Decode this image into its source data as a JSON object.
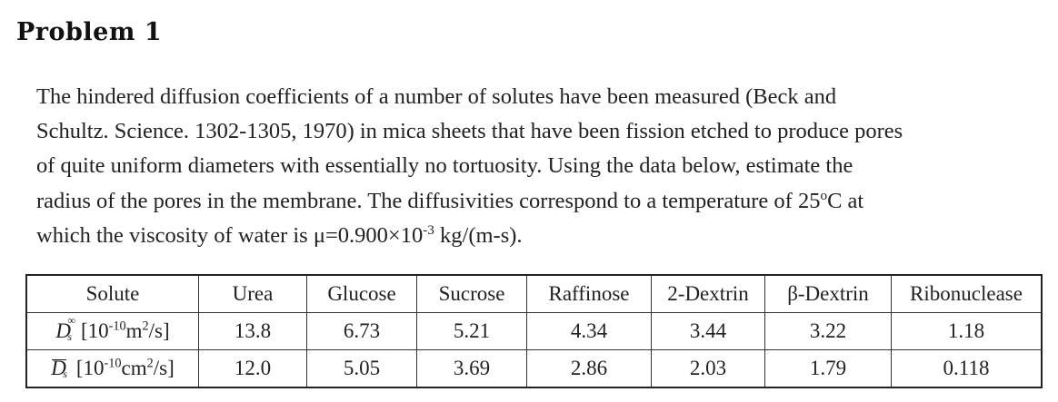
{
  "heading": "Problem 1",
  "paragraph": {
    "line1": "The hindered diffusion coefficients of a number of solutes have been measured (Beck and",
    "line2": "Schultz. Science. 1302-1305, 1970) in mica sheets that have been fission etched to produce pores",
    "line3": "of quite uniform diameters with essentially no tortuosity.  Using the data below, estimate the",
    "line4_a": "radius of the pores in the membrane.  The diffusivities correspond to a temperature of 25",
    "line4_deg": "o",
    "line4_b": "C at",
    "line5_a": "which the viscosity of water is μ=0.900×10",
    "line5_exp": "-3",
    "line5_b": " kg/(m-s)."
  },
  "table": {
    "headers": [
      "Solute",
      "Urea",
      "Glucose",
      "Sucrose",
      "Raffinose",
      "2-Dextrin",
      "β-Dextrin",
      "Ribonuclease"
    ],
    "row1": {
      "symbol": "D",
      "symbol_sup": "∞",
      "symbol_sub": "s",
      "unit_a": "[10",
      "unit_exp1": "-10",
      "unit_b": "m",
      "unit_exp2": "2",
      "unit_c": "/s]",
      "values": [
        "13.8",
        "6.73",
        "5.21",
        "4.34",
        "3.44",
        "3.22",
        "1.18"
      ]
    },
    "row2": {
      "symbol": "D",
      "symbol_sub": "s",
      "unit_a": "[10",
      "unit_exp1": "-10",
      "unit_b": "cm",
      "unit_exp2": "2",
      "unit_c": "/s]",
      "values": [
        "12.0",
        "5.05",
        "3.69",
        "2.86",
        "2.03",
        "1.79",
        "0.118"
      ]
    }
  }
}
